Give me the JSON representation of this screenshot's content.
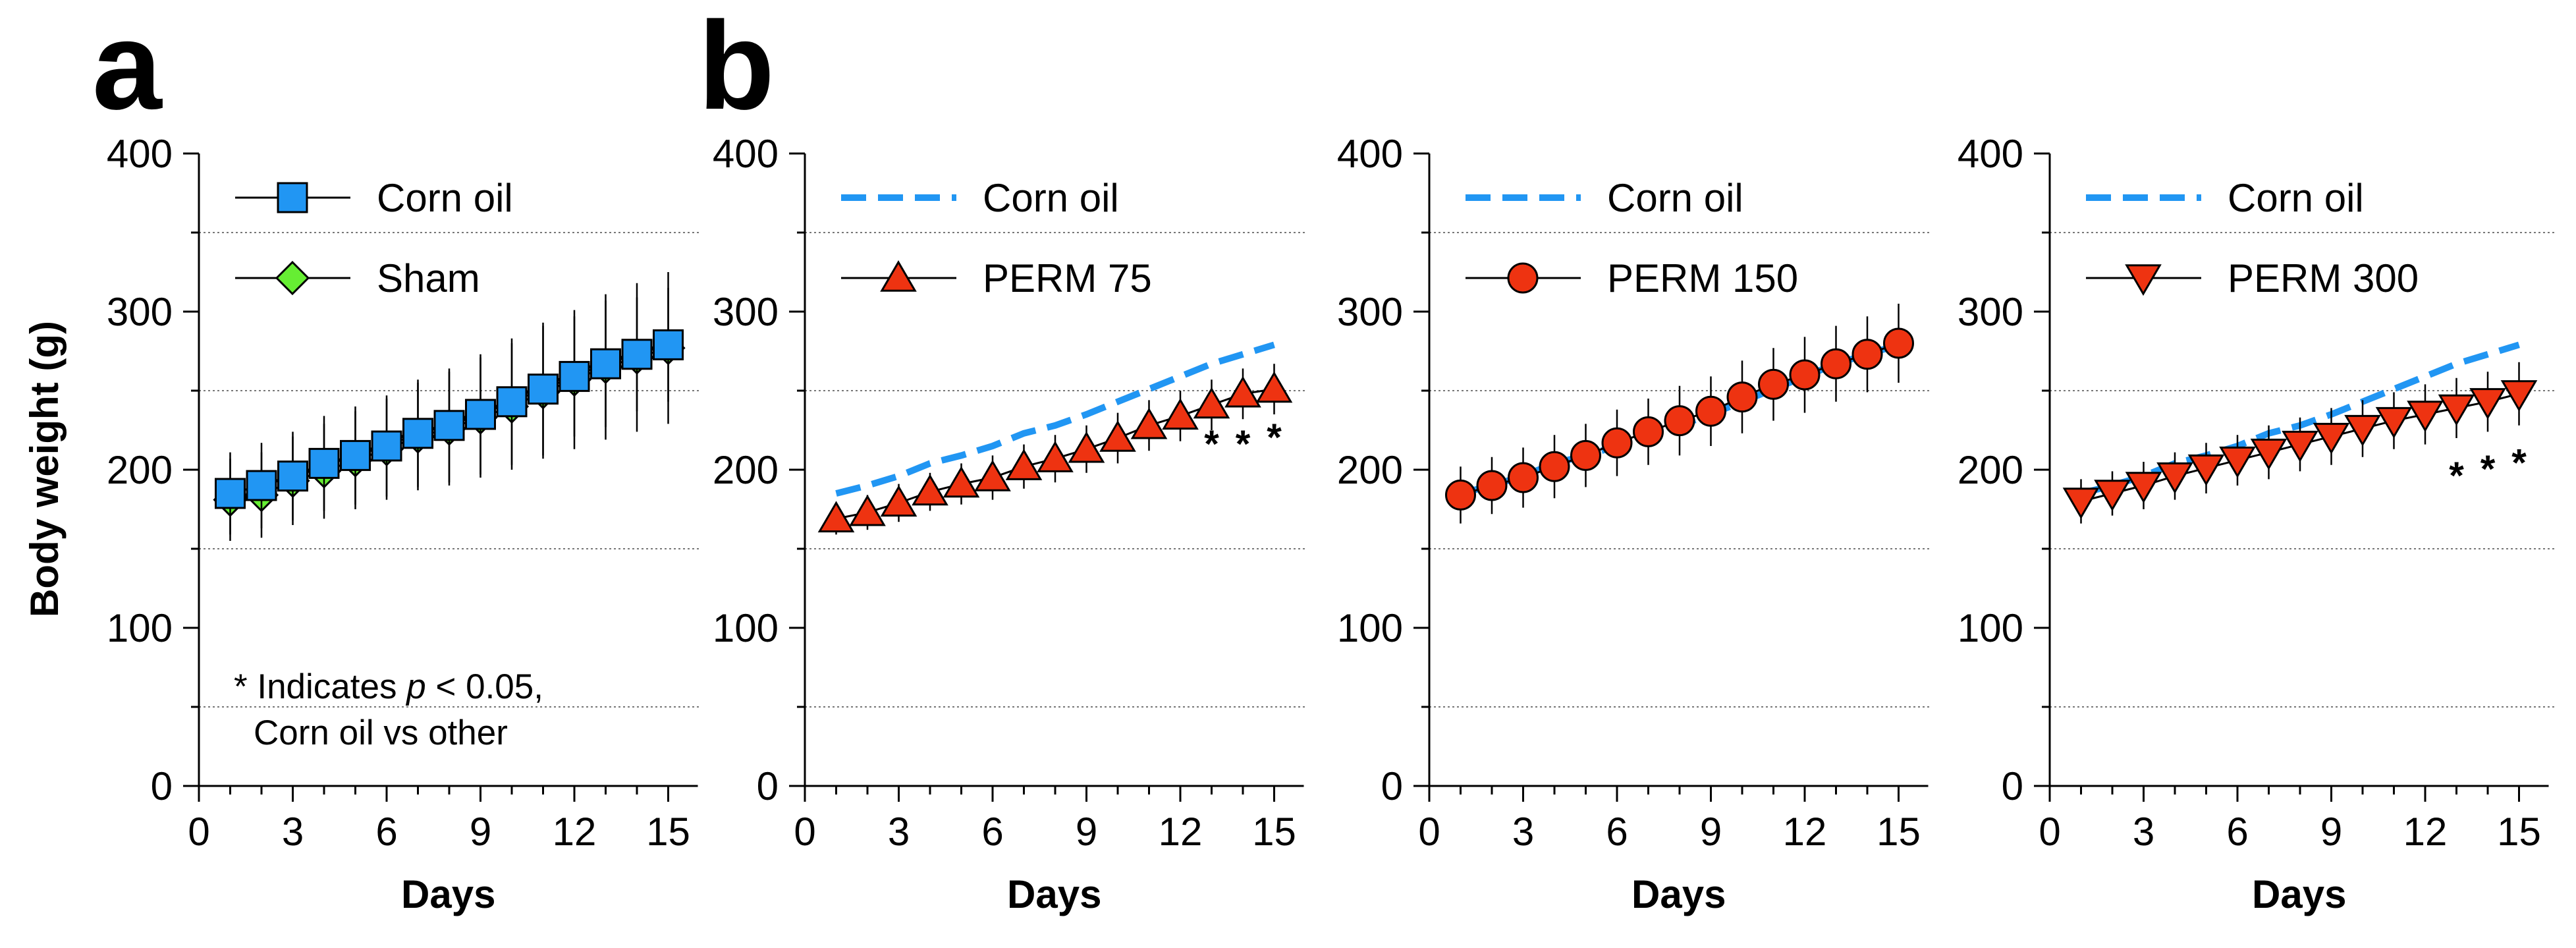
{
  "figure": {
    "panel_labels": [
      "a",
      "b"
    ],
    "y_axis_label": "Body weight (g)",
    "x_axis_label": "Days",
    "note_line1_pre": "* Indicates ",
    "note_line1_italic": "p",
    "note_line1_post": " < 0.05,",
    "note_line2": "Corn oil vs other"
  },
  "colors": {
    "corn_oil": "#2196f3",
    "sham": "#66ee33",
    "perm": "#ee3311",
    "gridline": "#777777"
  },
  "chart_data": [
    {
      "type": "line",
      "panel": "a",
      "xlabel": "Days",
      "ylabel": "Body weight (g)",
      "xlim": [
        0,
        16
      ],
      "ylim": [
        0,
        400
      ],
      "xticks": [
        0,
        3,
        6,
        9,
        12,
        15
      ],
      "yticks": [
        0,
        100,
        200,
        300,
        400
      ],
      "grid_y": [
        50,
        150,
        250,
        350
      ],
      "legend_position": "top-left",
      "x": [
        1,
        2,
        3,
        4,
        5,
        6,
        7,
        8,
        9,
        10,
        11,
        12,
        13,
        14,
        15
      ],
      "series": [
        {
          "name": "Sham",
          "style": "diamond",
          "color": "#66ee33",
          "values": [
            181,
            184,
            193,
            199,
            206,
            213,
            221,
            226,
            233,
            240,
            249,
            257,
            265,
            271,
            277
          ],
          "errors": [
            26,
            27,
            28,
            30,
            31,
            32,
            34,
            36,
            38,
            40,
            42,
            44,
            46,
            47,
            48
          ]
        },
        {
          "name": "Corn oil",
          "style": "square",
          "color": "#2196f3",
          "values": [
            185,
            190,
            196,
            204,
            209,
            215,
            223,
            228,
            235,
            243,
            251,
            259,
            267,
            273,
            279
          ],
          "errors": [
            26,
            27,
            28,
            30,
            31,
            32,
            34,
            36,
            38,
            40,
            42,
            38,
            40,
            36,
            36
          ]
        }
      ],
      "annotations": []
    },
    {
      "type": "line",
      "panel": "b1",
      "xlabel": "Days",
      "ylabel": "",
      "xlim": [
        0,
        16
      ],
      "ylim": [
        0,
        400
      ],
      "xticks": [
        0,
        3,
        6,
        9,
        12,
        15
      ],
      "yticks": [
        0,
        100,
        200,
        300,
        400
      ],
      "grid_y": [
        50,
        150,
        250,
        350
      ],
      "legend_position": "top-left",
      "x": [
        1,
        2,
        3,
        4,
        5,
        6,
        7,
        8,
        9,
        10,
        11,
        12,
        13,
        14,
        15
      ],
      "series": [
        {
          "name": "Corn oil",
          "style": "dashed",
          "color": "#2196f3",
          "values": [
            185,
            190,
            196,
            204,
            209,
            215,
            223,
            228,
            235,
            243,
            251,
            259,
            267,
            273,
            279
          ],
          "errors": []
        },
        {
          "name": "PERM 75",
          "style": "triangle-up",
          "color": "#ee3311",
          "values": [
            169,
            173,
            179,
            186,
            191,
            195,
            202,
            207,
            213,
            220,
            228,
            234,
            241,
            248,
            251
          ],
          "errors": [
            10,
            11,
            12,
            12,
            13,
            14,
            14,
            15,
            15,
            16,
            16,
            16,
            16,
            16,
            16
          ]
        }
      ],
      "annotations": [
        {
          "text": "*",
          "x": 13,
          "y": 208
        },
        {
          "text": "*",
          "x": 14,
          "y": 208
        },
        {
          "text": "*",
          "x": 15,
          "y": 212
        }
      ]
    },
    {
      "type": "line",
      "panel": "b2",
      "xlabel": "Days",
      "ylabel": "",
      "xlim": [
        0,
        16
      ],
      "ylim": [
        0,
        400
      ],
      "xticks": [
        0,
        3,
        6,
        9,
        12,
        15
      ],
      "yticks": [
        0,
        100,
        200,
        300,
        400
      ],
      "grid_y": [
        50,
        150,
        250,
        350
      ],
      "legend_position": "top-left",
      "x": [
        1,
        2,
        3,
        4,
        5,
        6,
        7,
        8,
        9,
        10,
        11,
        12,
        13,
        14,
        15
      ],
      "series": [
        {
          "name": "Corn oil",
          "style": "dashed",
          "color": "#2196f3",
          "values": [
            185,
            190,
            196,
            204,
            209,
            215,
            223,
            228,
            235,
            243,
            251,
            259,
            267,
            273,
            279
          ],
          "errors": []
        },
        {
          "name": "PERM 150",
          "style": "circle",
          "color": "#ee3311",
          "values": [
            184,
            190,
            195,
            202,
            209,
            217,
            224,
            231,
            237,
            246,
            254,
            260,
            267,
            273,
            280
          ],
          "errors": [
            18,
            18,
            19,
            20,
            20,
            21,
            21,
            22,
            22,
            23,
            23,
            24,
            24,
            24,
            25
          ]
        }
      ],
      "annotations": []
    },
    {
      "type": "line",
      "panel": "b3",
      "xlabel": "Days",
      "ylabel": "",
      "xlim": [
        0,
        16
      ],
      "ylim": [
        0,
        400
      ],
      "xticks": [
        0,
        3,
        6,
        9,
        12,
        15
      ],
      "yticks": [
        0,
        100,
        200,
        300,
        400
      ],
      "grid_y": [
        50,
        150,
        250,
        350
      ],
      "legend_position": "top-left",
      "x": [
        1,
        2,
        3,
        4,
        5,
        6,
        7,
        8,
        9,
        10,
        11,
        12,
        13,
        14,
        15
      ],
      "series": [
        {
          "name": "Corn oil",
          "style": "dashed",
          "color": "#2196f3",
          "values": [
            185,
            190,
            196,
            204,
            209,
            215,
            223,
            228,
            235,
            243,
            251,
            259,
            267,
            273,
            279
          ],
          "errors": []
        },
        {
          "name": "PERM 300",
          "style": "triangle-down",
          "color": "#ee3311",
          "values": [
            180,
            185,
            190,
            196,
            201,
            206,
            211,
            216,
            221,
            226,
            231,
            235,
            239,
            243,
            248
          ],
          "errors": [
            14,
            14,
            15,
            15,
            16,
            16,
            17,
            17,
            18,
            18,
            18,
            19,
            19,
            19,
            20
          ]
        }
      ],
      "annotations": [
        {
          "text": "*",
          "x": 13,
          "y": 188
        },
        {
          "text": "*",
          "x": 14,
          "y": 192
        },
        {
          "text": "*",
          "x": 15,
          "y": 196
        }
      ]
    }
  ]
}
